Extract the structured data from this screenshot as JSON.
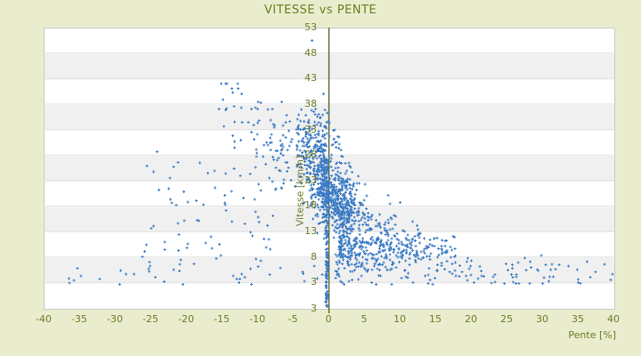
{
  "title": "VITESSE vs PENTE",
  "colors": {
    "background": "#eaedcd",
    "title_text": "#6b7c1f",
    "label_text": "#6e7a28",
    "axis_line": "#4c581c",
    "gridline": "#e2e2e2",
    "band_light": "#ffffff",
    "band_dark": "#f0f0f0",
    "plot_border": "#c9c9c9",
    "point_blue": "#3c7bc4"
  },
  "chart_data": {
    "type": "scatter",
    "title": "VITESSE vs PENTE",
    "xlabel": "Pente [%]",
    "ylabel": "Vitesse [km/h]",
    "x_range": [
      -40,
      40
    ],
    "y_range": [
      -2,
      53
    ],
    "x_ticks": [
      -40,
      -35,
      -30,
      -25,
      -20,
      -15,
      -10,
      -5,
      0,
      5,
      10,
      15,
      20,
      25,
      30,
      35,
      40
    ],
    "y_ticks": [
      53,
      48,
      43,
      38,
      33,
      28,
      23,
      18,
      13,
      8,
      3
    ],
    "y_axis_min_label": "3",
    "legend": "none",
    "grid": "horizontal-bands-every-5",
    "marker": "small-cross",
    "point_color": "#3c7bc4",
    "description": "Cyclist speed (km/h) versus road gradient (%): ~1700 GPS samples. Dense core near 0-4% at 12-28 km/h; vertical column of stopped/slow samples at 0% down to 0 km/h; downhill fan rising to ~40-42 km/h between -15% and -2%; climbing band at 8-11 km/h from +2% to +18%; sparse low-speed tails (3-8 km/h) out to ±40%; single outlier near -2%, 50.5 km/h.",
    "distribution": {
      "seed": 7,
      "clusters": [
        {
          "name": "core-blob",
          "n": 500,
          "x": {
            "type": "normal",
            "mean": 1.0,
            "sd": 1.7,
            "min": -3.5,
            "max": 8
          },
          "y": {
            "type": "linear",
            "base": 20.5,
            "slope": -0.8,
            "sd": 3.6,
            "min": 7,
            "max": 30
          }
        },
        {
          "name": "zero-column",
          "n": 150,
          "x": {
            "type": "normal",
            "mean": -0.25,
            "sd": 0.09,
            "min": -0.5,
            "max": 0
          },
          "y": {
            "type": "uniform",
            "min": -1.8,
            "max": 27
          }
        },
        {
          "name": "upper-cluster",
          "n": 160,
          "x": {
            "type": "normal",
            "mean": -1.8,
            "sd": 1.7,
            "min": -7,
            "max": 1.5
          },
          "y": {
            "type": "normal",
            "mean": 30.5,
            "sd": 3.2,
            "min": 25,
            "max": 40
          }
        },
        {
          "name": "left-fan",
          "n": 210,
          "x": {
            "type": "power",
            "from": -0.5,
            "to": -15.5,
            "exp": 2.2
          },
          "y": {
            "type": "linear",
            "base": 24,
            "slope": -0.85,
            "sd": 4.5,
            "min": 6,
            "max": 42
          }
        },
        {
          "name": "left-mid",
          "n": 70,
          "x": {
            "type": "uniform",
            "min": -26,
            "max": -7
          },
          "y": {
            "type": "normal",
            "mean": 17,
            "sd": 6,
            "min": 4,
            "max": 30
          }
        },
        {
          "name": "right-band",
          "n": 250,
          "x": {
            "type": "power",
            "from": 1.5,
            "to": 18,
            "exp": 1.6
          },
          "y": {
            "type": "normal",
            "mean": 9.6,
            "sd": 1.3,
            "min": 6.5,
            "max": 13
          }
        },
        {
          "name": "right-wedge",
          "n": 170,
          "x": {
            "type": "power",
            "from": 1.5,
            "to": 13,
            "exp": 1.4
          },
          "y": {
            "type": "linear",
            "base": 17,
            "slope": -0.55,
            "sd": 3.0,
            "min": 7,
            "max": 26
          }
        },
        {
          "name": "right-tail",
          "n": 60,
          "x": {
            "type": "power",
            "from": 14,
            "to": 40,
            "exp": 1.5
          },
          "y": {
            "type": "normal",
            "mean": 5.5,
            "sd": 1.7,
            "min": 2.8,
            "max": 10.5
          }
        },
        {
          "name": "below-band",
          "n": 70,
          "x": {
            "type": "power",
            "from": 1,
            "to": 12,
            "exp": 1.3
          },
          "y": {
            "type": "normal",
            "mean": 5.8,
            "sd": 1.6,
            "min": 3,
            "max": 8.5
          }
        },
        {
          "name": "bottom-scatter",
          "n": 75,
          "x": {
            "type": "uniform",
            "min": -37,
            "max": 38
          },
          "y": {
            "type": "normal",
            "mean": 4.8,
            "sd": 1.4,
            "min": 2.6,
            "max": 8.5
          }
        }
      ],
      "outliers": [
        [
          -2.3,
          50.5
        ],
        [
          39.6,
          3.5
        ],
        [
          39.9,
          4.6
        ]
      ]
    }
  }
}
